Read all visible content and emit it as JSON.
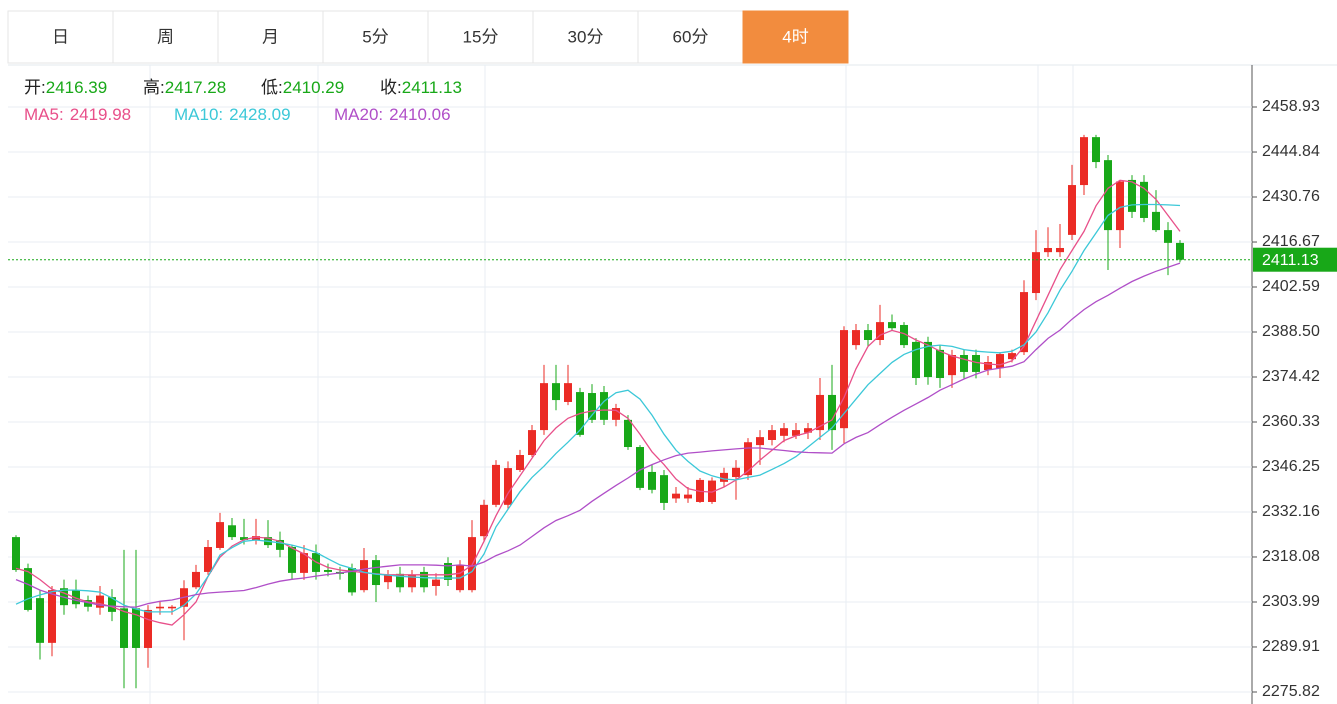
{
  "tabs": [
    {
      "label": "日"
    },
    {
      "label": "周"
    },
    {
      "label": "月"
    },
    {
      "label": "5分"
    },
    {
      "label": "15分"
    },
    {
      "label": "30分"
    },
    {
      "label": "60分"
    },
    {
      "label": "4时",
      "active": true
    }
  ],
  "chart_data": {
    "type": "candlestick",
    "header_labels": {
      "open": "开:",
      "high": "高:",
      "low": "低:",
      "close": "收:"
    },
    "up_color": "#eb2b25",
    "down_color": "#18a818",
    "grid": true,
    "ylim": [
      2272.06,
      2472.08
    ],
    "yticks": [
      2458.93,
      2444.84,
      2430.76,
      2416.67,
      2402.59,
      {
        "value": 2388.5,
        "label": "2388.50"
      },
      2374.42,
      2360.33,
      2346.25,
      2332.16,
      2318.08,
      2303.99,
      2289.91,
      2275.82
    ],
    "open": [
      2324.3,
      2314.6,
      2305.2,
      2291.2,
      2308.3,
      2307.7,
      2304.6,
      2302.2,
      2305.5,
      2302,
      2302,
      2289.6,
      2302,
      2302,
      2302.5,
      2308.6,
      2313.4,
      2320.9,
      2328,
      2324.3,
      2323.4,
      2324.3,
      2323.4,
      2321.2,
      2313.1,
      2319.3,
      2314,
      2313.4,
      2314.6,
      2307.7,
      2317.1,
      2310.2,
      2312.8,
      2308.6,
      2313.4,
      2309,
      2316.2,
      2307.7,
      2307.7,
      2324.6,
      2334.4,
      2334.4,
      2345.3,
      2350,
      2357.8,
      2372.5,
      2366.6,
      2369.7,
      2369.4,
      2369.7,
      2361,
      2361,
      2352.5,
      2344.7,
      2343.7,
      2336.4,
      2336.4,
      2335.3,
      2335.3,
      2341.6,
      2343.1,
      2343.7,
      2353.1,
      2354.7,
      2356,
      2356,
      2357,
      2357.8,
      2368.8,
      2358.4,
      2384.4,
      2389.1,
      2386,
      2391.6,
      2390.7,
      2385.4,
      2385.4,
      2382.9,
      2375,
      2381.3,
      2381.3,
      2376.6,
      2377.2,
      2380,
      2382.2,
      2400.7,
      2413.5,
      2413.5,
      2418.9,
      2434.5,
      2449.5,
      2442.3,
      2420.4,
      2436.1,
      2435.5,
      2426.1,
      2420.4,
      2416.39
    ],
    "high": [
      2324.9,
      2316,
      2307.7,
      2309,
      2311,
      2311,
      2306,
      2309,
      2308,
      2320.3,
      2320.3,
      2303,
      2304,
      2303,
      2310.8,
      2315.6,
      2323.4,
      2331.9,
      2330.3,
      2330,
      2330,
      2329.6,
      2326,
      2321.8,
      2321.8,
      2322,
      2316,
      2315,
      2316,
      2320.9,
      2318.7,
      2314,
      2315,
      2314,
      2315,
      2313,
      2318,
      2317.1,
      2329.6,
      2336,
      2348.4,
      2348,
      2351.6,
      2359.4,
      2378.2,
      2378.2,
      2378.2,
      2371,
      2372.2,
      2371.6,
      2366,
      2362.5,
      2353.1,
      2347,
      2345.3,
      2340,
      2340,
      2342.8,
      2343,
      2346,
      2348.4,
      2355.3,
      2357.8,
      2359.4,
      2360,
      2360,
      2360,
      2374.1,
      2378.2,
      2390.3,
      2391,
      2391,
      2397,
      2394,
      2391.6,
      2386.6,
      2387,
      2384.4,
      2382.9,
      2383,
      2383,
      2381,
      2382.2,
      2383,
      2404.7,
      2420.4,
      2421.3,
      2422.3,
      2440.8,
      2450.2,
      2450.2,
      2443.9,
      2436.1,
      2437.6,
      2437.6,
      2432.9,
      2422.9,
      2417.28
    ],
    "low": [
      2313.4,
      2301,
      2286,
      2287,
      2300,
      2302,
      2301,
      2300,
      2298,
      2277,
      2277,
      2283.4,
      2300,
      2300,
      2292,
      2308,
      2312.5,
      2320.3,
      2323.4,
      2322,
      2322,
      2320.9,
      2318,
      2310.9,
      2310.9,
      2311,
      2312,
      2311,
      2306,
      2307,
      2304,
      2308,
      2307,
      2307,
      2307,
      2306,
      2309,
      2307,
      2307,
      2323,
      2333.7,
      2333,
      2344.7,
      2349.4,
      2356.3,
      2364,
      2365.6,
      2355.7,
      2360,
      2359.4,
      2359,
      2351.6,
      2339,
      2338,
      2332.8,
      2335,
      2335,
      2335,
      2334.7,
      2340,
      2336,
      2342.2,
      2346.9,
      2353,
      2354,
      2355,
      2355,
      2354.7,
      2351.6,
      2353.7,
      2383,
      2384,
      2384.4,
      2389,
      2383.5,
      2371.9,
      2372,
      2371,
      2371,
      2374,
      2374,
      2375,
      2374.1,
      2379,
      2381.3,
      2398.5,
      2412,
      2412,
      2417.3,
      2431.4,
      2439.8,
      2407.9,
      2414.8,
      2424.2,
      2422.9,
      2419.8,
      2406.3,
      2410.29
    ],
    "close": [
      2314.0,
      2301.5,
      2291.2,
      2307.7,
      2303,
      2303.3,
      2302.5,
      2306,
      2300.9,
      2289.6,
      2289.6,
      2301.5,
      2302.5,
      2302.5,
      2308.3,
      2313.4,
      2321.2,
      2329,
      2324.3,
      2323.4,
      2324.6,
      2321.8,
      2320.3,
      2313.1,
      2319.3,
      2313.4,
      2313.4,
      2312.8,
      2307,
      2317.1,
      2309.3,
      2312.5,
      2308.6,
      2312.5,
      2308.6,
      2311,
      2310.9,
      2315.6,
      2324.3,
      2334.4,
      2346.9,
      2345.9,
      2350,
      2357.8,
      2372.5,
      2367.2,
      2372.5,
      2356.3,
      2361,
      2361,
      2364.7,
      2352.5,
      2339.7,
      2339.1,
      2335,
      2337.9,
      2337.6,
      2342.2,
      2342,
      2344.4,
      2346,
      2354,
      2355.6,
      2357.8,
      2358.4,
      2357.8,
      2358.4,
      2368.8,
      2357.8,
      2389.1,
      2389.1,
      2386,
      2391.6,
      2389.7,
      2384.4,
      2374.1,
      2374.4,
      2374.1,
      2381.3,
      2376,
      2376,
      2379.1,
      2381.6,
      2381.9,
      2401,
      2413.5,
      2414.8,
      2414.8,
      2434.5,
      2449.5,
      2441.7,
      2420.4,
      2435.6,
      2426.1,
      2424.2,
      2420.4,
      2416.4,
      2411.13
    ],
    "series": [
      {
        "name": "MA5:",
        "color": "#e8508a",
        "values": [
          2314.5,
          2313.5,
          2311.0,
          2308.0,
          2306.8,
          2305.2,
          2304.0,
          2303.5,
          2302.5,
          2301.0,
          2300.0,
          2298.5,
          2297.5,
          2296.8,
          2300.0,
          2304.0,
          2312.0,
          2318.0,
          2321.5,
          2323.5,
          2324.3,
          2324.0,
          2323.0,
          2320.9,
          2319.0,
          2316.5,
          2314.8,
          2314.0,
          2313.6,
          2313.2,
          2312.8,
          2312.5,
          2312.5,
          2312.5,
          2312.5,
          2312.5,
          2312.5,
          2313.0,
          2315.5,
          2323.0,
          2331.0,
          2338.0,
          2343.5,
          2349.0,
          2354.5,
          2358.5,
          2361.5,
          2363.0,
          2363.8,
          2364.1,
          2364.0,
          2361.5,
          2356.5,
          2351.0,
          2347.0,
          2342.5,
          2339.5,
          2338.6,
          2338.4,
          2340.0,
          2342.2,
          2345.0,
          2348.4,
          2351.5,
          2354.5,
          2356.0,
          2357.0,
          2359.0,
          2361.0,
          2368.0,
          2377.0,
          2384.0,
          2387.5,
          2389.0,
          2388.0,
          2386.0,
          2384.4,
          2382.5,
          2381.0,
          2380.0,
          2379.0,
          2378.5,
          2378.2,
          2379.5,
          2384.0,
          2392.0,
          2400.0,
          2408.0,
          2414.0,
          2420.0,
          2428.0,
          2433.5,
          2436.0,
          2435.5,
          2433.5,
          2430.0,
          2425.0,
          2419.98
        ]
      },
      {
        "name": "MA10:",
        "color": "#3cc8d8",
        "values": [
          2303.3,
          2305.0,
          2306.2,
          2307.2,
          2307.7,
          2307.7,
          2307.5,
          2307.1,
          2305.2,
          2303.0,
          2301.8,
          2300.9,
          2300.9,
          2300.9,
          2303.0,
          2306.5,
          2312.0,
          2318.7,
          2321.0,
          2323.0,
          2323.4,
          2323.0,
          2322.5,
          2321.8,
          2320.8,
          2319.5,
          2317.5,
          2315.6,
          2314.5,
          2313.3,
          2312.7,
          2312.4,
          2312.0,
          2311.8,
          2311.6,
          2311.5,
          2311.5,
          2311.5,
          2313.5,
          2319.0,
          2327.5,
          2333.0,
          2338.5,
          2343.0,
          2346.5,
          2350.5,
          2354.0,
          2357.8,
          2362.5,
          2366.8,
          2369.5,
          2370.3,
          2367.5,
          2362.5,
          2356.5,
          2351.5,
          2348.0,
          2345.0,
          2343.5,
          2342.5,
          2342.2,
          2343.0,
          2343.7,
          2345.5,
          2347.3,
          2349.5,
          2352.5,
          2355.5,
          2358.5,
          2363.0,
          2367.5,
          2372.0,
          2375.5,
          2379.0,
          2381.5,
          2383.0,
          2384.0,
          2384.4,
          2384.0,
          2383.0,
          2382.5,
          2382.2,
          2382.0,
          2382.5,
          2384.5,
          2388.5,
          2394.5,
          2401.6,
          2407.5,
          2414.0,
          2419.5,
          2425.0,
          2427.5,
          2428.3,
          2428.4,
          2428.4,
          2428.3,
          2428.09
        ]
      },
      {
        "name": "MA20:",
        "color": "#b04fc8",
        "values": [
          2311.0,
          2309.5,
          2307.7,
          2306.5,
          2305.5,
          2304.5,
          2303.8,
          2303.0,
          2302.7,
          2302.5,
          2302.4,
          2303.5,
          2304.2,
          2304.6,
          2305.5,
          2306.3,
          2306.8,
          2307.1,
          2307.3,
          2307.6,
          2308.5,
          2309.6,
          2310.5,
          2311.1,
          2311.5,
          2312.1,
          2312.6,
          2313.1,
          2313.6,
          2314.3,
          2314.8,
          2315.2,
          2315.6,
          2315.6,
          2315.6,
          2315.5,
          2315.3,
          2315.6,
          2315.2,
          2316.5,
          2318.5,
          2320.0,
          2321.8,
          2324.5,
          2327.2,
          2329.5,
          2331.0,
          2332.7,
          2335.5,
          2338.0,
          2340.5,
          2342.8,
          2345.3,
          2347.0,
          2348.5,
          2349.8,
          2350.6,
          2350.9,
          2351.3,
          2351.6,
          2351.9,
          2352.2,
          2352.2,
          2351.8,
          2351.4,
          2351.0,
          2350.8,
          2350.7,
          2350.6,
          2353.5,
          2355.5,
          2357.0,
          2359.5,
          2361.8,
          2364.0,
          2366.0,
          2368.0,
          2370.3,
          2372.0,
          2373.8,
          2375.3,
          2376.6,
          2377.2,
          2377.8,
          2379.2,
          2383.0,
          2386.5,
          2389.1,
          2392.5,
          2395.5,
          2398.0,
          2400.0,
          2402.2,
          2404.3,
          2406.0,
          2407.5,
          2408.8,
          2410.06
        ]
      }
    ]
  }
}
